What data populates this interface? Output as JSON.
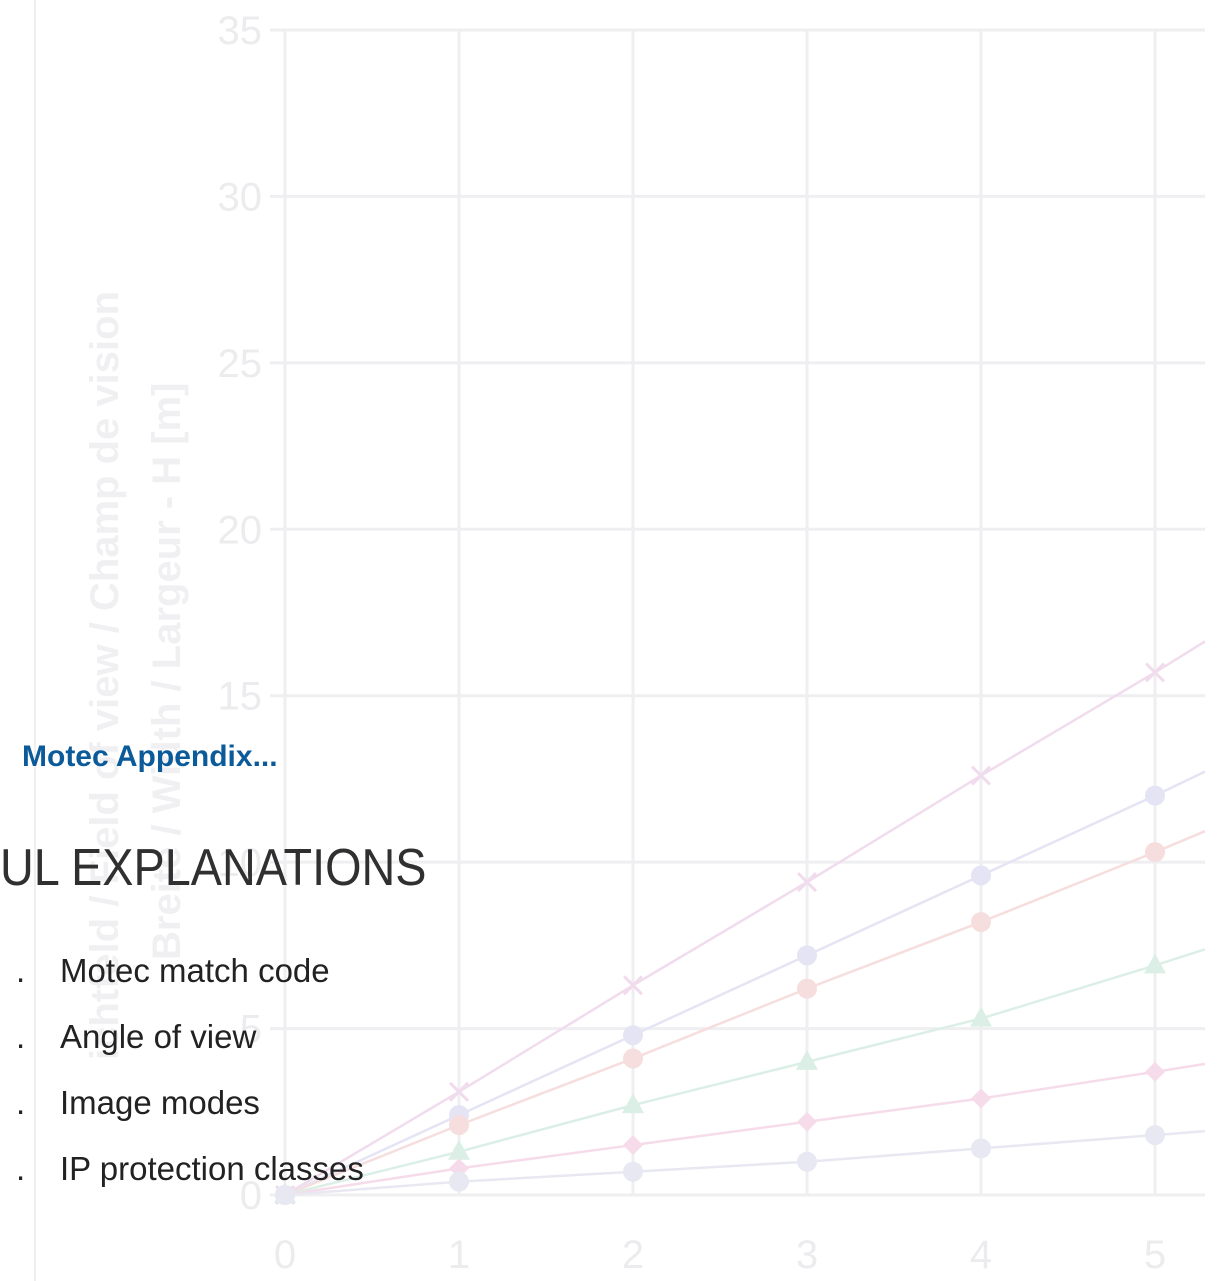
{
  "section_label": "Motec Appendix...",
  "heading": "UL EXPLANATIONS",
  "items": [
    {
      "number": ".",
      "label": "Motec match code"
    },
    {
      "number": ".",
      "label": "Angle of view"
    },
    {
      "number": ".",
      "label": "Image modes"
    },
    {
      "number": ".",
      "label": "IP protection classes"
    }
  ],
  "chart_data": {
    "type": "line",
    "opacity": "faint background watermark",
    "ylabel_lines": [
      "ichtfeld / Field of view / Champ de vision",
      "Breite / Width / Largeur - H [m]"
    ],
    "xlim": [
      0,
      5
    ],
    "ylim": [
      0,
      35
    ],
    "x_ticks": [
      "0",
      "1",
      "2",
      "3",
      "4",
      "5"
    ],
    "y_ticks": [
      "0",
      "5",
      "10",
      "15",
      "20",
      "25",
      "30",
      "35"
    ],
    "grid": true,
    "colors": {
      "grid": "#efeff2",
      "series": [
        "#f1dcee",
        "#e4e4f5",
        "#f6dedf",
        "#dcefe6",
        "#f6dceb",
        "#e8e8f2"
      ]
    },
    "series": [
      {
        "marker": "x",
        "values": [
          0,
          3.1,
          6.3,
          9.4,
          12.6,
          15.7
        ]
      },
      {
        "marker": "circle",
        "values": [
          0,
          2.4,
          4.8,
          7.2,
          9.6,
          12.0
        ]
      },
      {
        "marker": "circle",
        "values": [
          0,
          2.1,
          4.1,
          6.2,
          8.2,
          10.3
        ]
      },
      {
        "marker": "triangle",
        "values": [
          0,
          1.3,
          2.7,
          4.0,
          5.3,
          6.9
        ]
      },
      {
        "marker": "diamond",
        "values": [
          0,
          0.8,
          1.5,
          2.2,
          2.9,
          3.7
        ]
      },
      {
        "marker": "circle",
        "values": [
          0,
          0.4,
          0.7,
          1.0,
          1.4,
          1.8
        ]
      }
    ]
  }
}
